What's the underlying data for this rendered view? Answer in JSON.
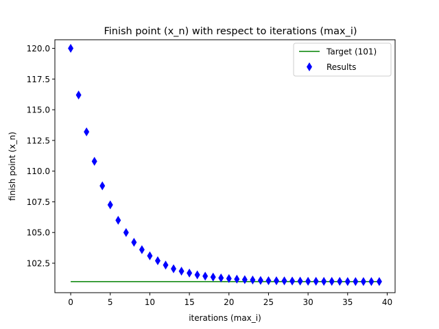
{
  "chart_data": {
    "type": "scatter",
    "title": "Finish point (x_n) with respect to iterations (max_i)",
    "xlabel": "iterations (max_i)",
    "ylabel": "finish point (x_n)",
    "xlim": [
      -2,
      41
    ],
    "ylim": [
      100.1,
      120.7
    ],
    "xticks": [
      0,
      5,
      10,
      15,
      20,
      25,
      30,
      35,
      40
    ],
    "yticks": [
      102.5,
      105.0,
      107.5,
      110.0,
      112.5,
      115.0,
      117.5,
      120.0
    ],
    "ytick_labels": [
      "102.5",
      "105.0",
      "107.5",
      "110.0",
      "112.5",
      "115.0",
      "117.5",
      "120.0"
    ],
    "grid": false,
    "legend_position": "top-right",
    "series": [
      {
        "name": "Target (101)",
        "kind": "line",
        "color": "#008000",
        "x": [
          0,
          39
        ],
        "y": [
          101,
          101
        ]
      },
      {
        "name": "Results",
        "kind": "scatter",
        "marker": "thin-diamond",
        "color": "#0000ff",
        "x": [
          0,
          1,
          2,
          3,
          4,
          5,
          6,
          7,
          8,
          9,
          10,
          11,
          12,
          13,
          14,
          15,
          16,
          17,
          18,
          19,
          20,
          21,
          22,
          23,
          24,
          25,
          26,
          27,
          28,
          29,
          30,
          31,
          32,
          33,
          34,
          35,
          36,
          37,
          38,
          39
        ],
        "y": [
          120.0,
          116.2,
          113.2,
          110.8,
          108.8,
          107.25,
          106.0,
          105.0,
          104.2,
          103.6,
          103.1,
          102.7,
          102.35,
          102.05,
          101.85,
          101.7,
          101.55,
          101.45,
          101.37,
          101.3,
          101.25,
          101.2,
          101.16,
          101.13,
          101.1,
          101.08,
          101.07,
          101.06,
          101.05,
          101.04,
          101.03,
          101.03,
          101.02,
          101.02,
          101.02,
          101.01,
          101.01,
          101.01,
          101.01,
          101.01
        ]
      }
    ]
  }
}
